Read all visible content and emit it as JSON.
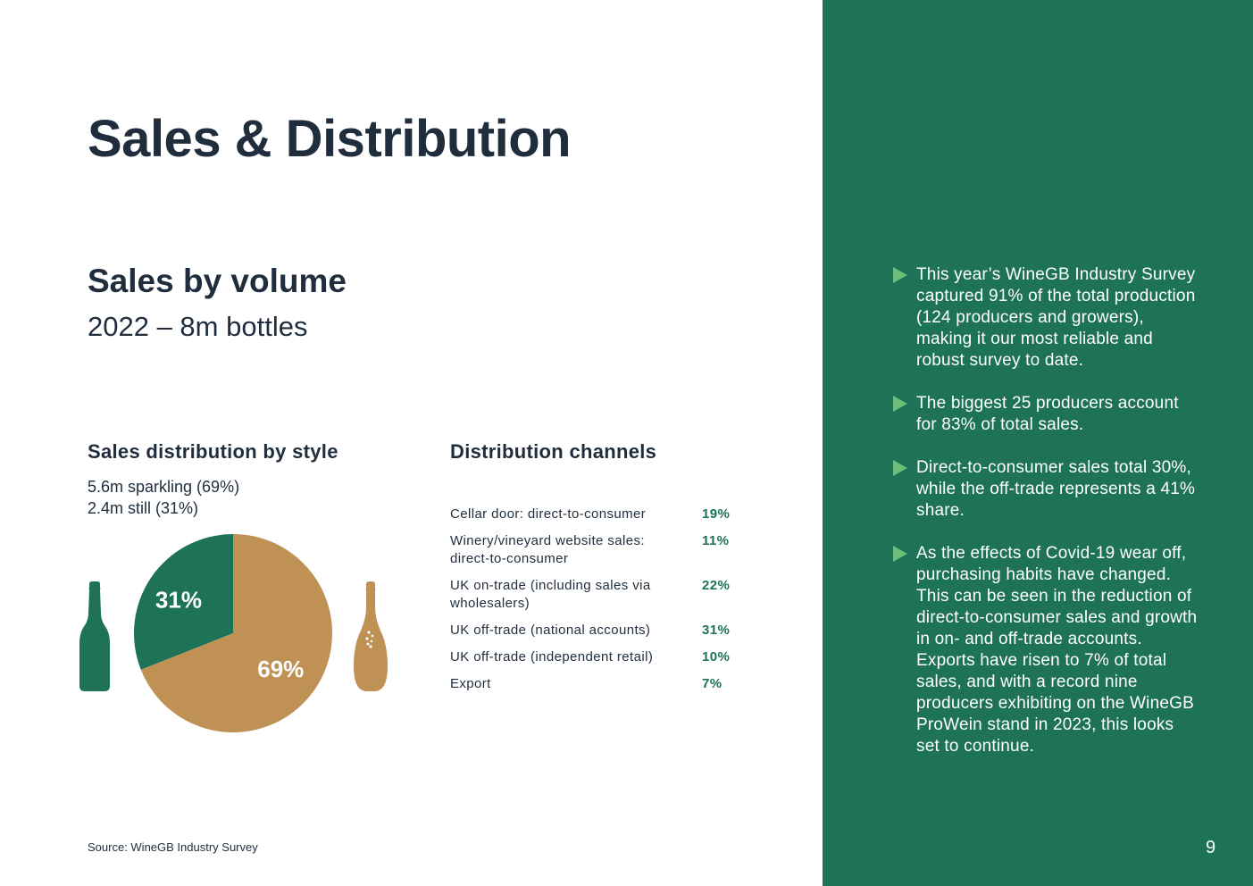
{
  "page": {
    "title": "Sales & Distribution",
    "page_number": "9",
    "source": "Source: WineGB Industry Survey"
  },
  "volume": {
    "title": "Sales by volume",
    "subtitle": "2022 – 8m bottles"
  },
  "style": {
    "heading": "Sales distribution by style",
    "line1": "5.6m sparkling (69%)",
    "line2": "2.4m still (31%)"
  },
  "channels": {
    "heading": "Distribution channels",
    "rows": [
      {
        "label": "Cellar door: direct-to-consumer",
        "value": "19%"
      },
      {
        "label": "Winery/vineyard website sales: direct-to-consumer",
        "value": "11%"
      },
      {
        "label": "UK on-trade (including sales via wholesalers)",
        "value": "22%"
      },
      {
        "label": "UK off-trade (national accounts)",
        "value": "31%"
      },
      {
        "label": "UK off-trade (independent retail)",
        "value": "10%"
      },
      {
        "label": "Export",
        "value": "7%"
      }
    ]
  },
  "chart_data": {
    "type": "pie",
    "title": "Sales distribution by style",
    "categories": [
      "Still",
      "Sparkling"
    ],
    "values": [
      31,
      69
    ],
    "labels": [
      "31%",
      "69%"
    ],
    "colors": [
      "#1d7258",
      "#bf9155"
    ]
  },
  "bullets": [
    {
      "text": "This year’s WineGB Industry Survey captured 91% of the total production (124 producers and growers), making it our most reliable and robust survey to date."
    },
    {
      "text": "The biggest 25 producers account for 83% of total sales."
    },
    {
      "text": "Direct-to-consumer sales total 30%, while the off-trade represents a 41% share."
    },
    {
      "text": "As the effects of Covid-19 wear off, purchasing habits have changed. This can be seen in the reduction of direct-to-consumer sales and growth in on- and off-trade accounts. Exports have risen to 7% of total sales, and with a record nine producers exhibiting on the WineGB ProWein stand in 2023, this looks set to continue."
    }
  ],
  "colors": {
    "green": "#1d7258",
    "gold": "#bf9155",
    "navy": "#1f2d3d",
    "arrow": "#6cc07a"
  }
}
